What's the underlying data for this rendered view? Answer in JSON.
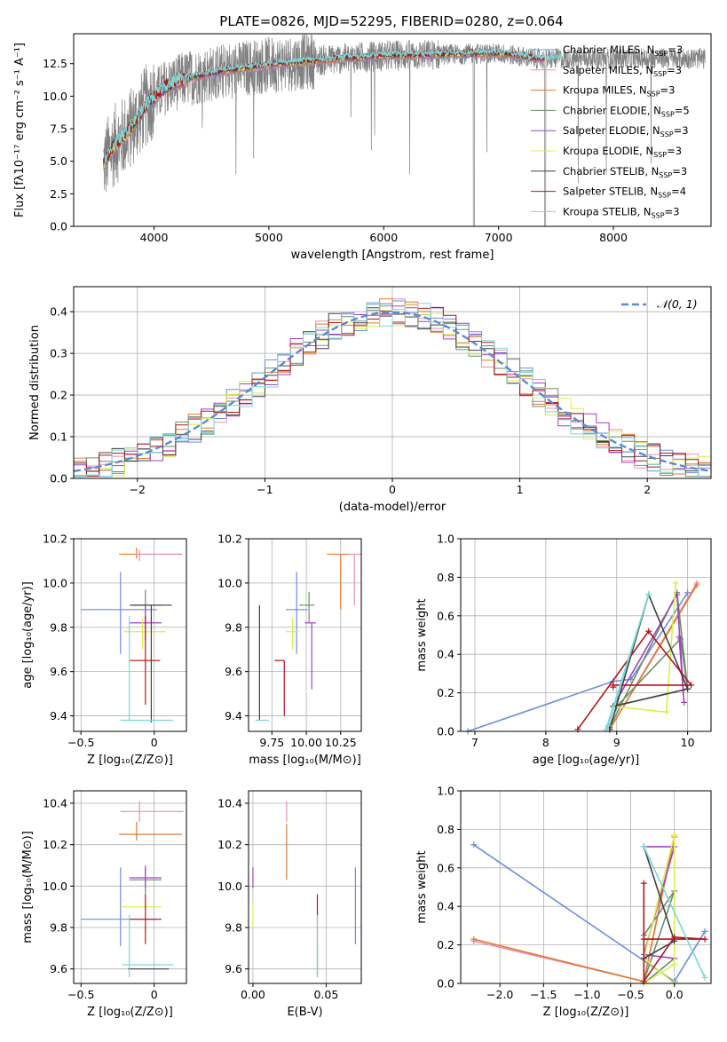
{
  "title": "PLATE=0826, MJD=52295, FIBERID=0280, z=0.064",
  "colors": {
    "gray": "#808080",
    "cb_miles": "#6a8fd9",
    "sp_miles": "#e88fb8",
    "kr_miles": "#e07b2c",
    "cb_elodie": "#6b8e6b",
    "sp_elodie": "#a241c2",
    "kr_elodie": "#d8ef4c",
    "cb_stelib": "#404040",
    "sp_stelib": "#b5141a",
    "kr_stelib": "#7ad7d8",
    "gauss": "#5b8ad6"
  },
  "chart_data": [
    {
      "id": "spectrum",
      "type": "line",
      "xlabel": "wavelength [Angstrom, rest frame]",
      "ylabel": "Flux [fλ10⁻¹⁷ erg cm⁻² s⁻¹ A⁻¹]",
      "xlim": [
        3300,
        8850
      ],
      "ylim": [
        0,
        14.8
      ],
      "xticks": [
        4000,
        5000,
        6000,
        7000,
        8000
      ],
      "yticks": [
        0.0,
        2.5,
        5.0,
        7.5,
        10.0,
        12.5
      ],
      "legend_position": "right",
      "legend": [
        {
          "label": "Chabrier MILES, N",
          "sub": "SSP",
          "n": "=3",
          "color": "cb_miles"
        },
        {
          "label": "Salpeter MILES, N",
          "sub": "SSP",
          "n": "=3",
          "color": "sp_miles"
        },
        {
          "label": "Kroupa MILES, N",
          "sub": "SSP",
          "n": "=3",
          "color": "kr_miles"
        },
        {
          "label": "Chabrier ELODIE, N",
          "sub": "SSP",
          "n": "=5",
          "color": "cb_elodie"
        },
        {
          "label": "Salpeter ELODIE, N",
          "sub": "SSP",
          "n": "=3",
          "color": "sp_elodie"
        },
        {
          "label": "Kroupa ELODIE, N",
          "sub": "SSP",
          "n": "=3",
          "color": "kr_elodie"
        },
        {
          "label": "Chabrier STELIB, N",
          "sub": "SSP",
          "n": "=3",
          "color": "cb_stelib"
        },
        {
          "label": "Salpeter STELIB, N",
          "sub": "SSP",
          "n": "=4",
          "color": "sp_stelib"
        },
        {
          "label": "Kroupa STELIB, N",
          "sub": "SSP",
          "n": "=3",
          "color": "kr_stelib"
        }
      ],
      "continuum": [
        [
          3560,
          4.8
        ],
        [
          3650,
          6.2
        ],
        [
          3750,
          7.0
        ],
        [
          3850,
          8.2
        ],
        [
          3950,
          9.5
        ],
        [
          4100,
          10.7
        ],
        [
          4300,
          11.4
        ],
        [
          4600,
          11.9
        ],
        [
          5000,
          12.4
        ],
        [
          5500,
          12.8
        ],
        [
          6000,
          13.1
        ],
        [
          6500,
          13.2
        ],
        [
          7000,
          13.3
        ],
        [
          7400,
          12.8
        ],
        [
          7500,
          12.9
        ]
      ]
    },
    {
      "id": "residuals",
      "type": "histogram",
      "xlabel": "(data-model)/error",
      "ylabel": "Normed distribution",
      "xlim": [
        -2.5,
        2.5
      ],
      "ylim": [
        0,
        0.46
      ],
      "xticks": [
        -2,
        -1,
        0,
        1,
        2
      ],
      "yticks": [
        0.0,
        0.1,
        0.2,
        0.3,
        0.4
      ],
      "legend": "𝒩(0, 1)",
      "legend_position": "upper right",
      "grid": true
    },
    {
      "id": "age_vs_Z",
      "type": "errorbar",
      "xlabel": "Z [log₁₀(Z/Z⊙)]",
      "ylabel": "age  [log₁₀(age/yr)]",
      "xlim": [
        -0.55,
        0.22
      ],
      "ylim": [
        9.33,
        10.2
      ],
      "xticks": [
        -0.5,
        0.0
      ],
      "yticks": [
        9.4,
        9.6,
        9.8,
        10.0,
        10.2
      ],
      "points": [
        {
          "color": "cb_miles",
          "x": -0.23,
          "xe": [
            0.27,
            0.25
          ],
          "y": 9.88,
          "ye": [
            0.2,
            0.17
          ]
        },
        {
          "color": "kr_miles",
          "x": -0.12,
          "xe": [
            0.12,
            0.31
          ],
          "y": 10.13,
          "ye": [
            0.02,
            0.03
          ]
        },
        {
          "color": "sp_miles",
          "x": -0.1,
          "xe": [
            0.03,
            0.27
          ],
          "y": 10.13,
          "ye": [
            0.03,
            0.02
          ]
        },
        {
          "color": "cb_elodie",
          "x": -0.06,
          "xe": [
            0.11,
            0.11
          ],
          "y": 9.9,
          "ye": [
            0.07,
            0.07
          ]
        },
        {
          "color": "sp_elodie",
          "x": -0.06,
          "xe": [
            0.11,
            0.11
          ],
          "y": 9.82,
          "ye": [
            0.08,
            0.08
          ]
        },
        {
          "color": "kr_elodie",
          "x": -0.08,
          "xe": [
            0.13,
            0.16
          ],
          "y": 9.78,
          "ye": [
            0.08,
            0.06
          ]
        },
        {
          "color": "sp_stelib",
          "x": -0.06,
          "xe": [
            0.11,
            0.1
          ],
          "y": 9.65,
          "ye": [
            0.2,
            0.2
          ]
        },
        {
          "color": "cb_stelib",
          "x": -0.02,
          "xe": [
            0.14,
            0.14
          ],
          "y": 9.9,
          "ye": [
            0.53,
            0.0
          ]
        },
        {
          "color": "kr_stelib",
          "x": -0.17,
          "xe": [
            0.06,
            0.3
          ],
          "y": 9.38,
          "ye": [
            0.0,
            0.47
          ]
        }
      ]
    },
    {
      "id": "age_vs_mass",
      "type": "errorbar",
      "xlabel": "mass [log₁₀(M/M⊙)]",
      "ylabel": "",
      "xlim": [
        9.58,
        10.4
      ],
      "ylim": [
        9.33,
        10.2
      ],
      "xticks": [
        9.75,
        10.0,
        10.25
      ],
      "xticklabels": [
        "9.75",
        "10.00",
        "10.25"
      ],
      "yticks": [
        9.4,
        9.6,
        9.8,
        10.0,
        10.2
      ],
      "points": [
        {
          "color": "cb_miles",
          "x": 9.93,
          "xe": [
            0.08,
            0.08
          ],
          "y": 9.88,
          "ye": [
            0.2,
            0.17
          ]
        },
        {
          "color": "kr_miles",
          "x": 10.25,
          "xe": [
            0.1,
            0.06
          ],
          "y": 10.13,
          "ye": [
            0.25,
            0.0
          ]
        },
        {
          "color": "sp_miles",
          "x": 10.35,
          "xe": [
            0.05,
            0.05
          ],
          "y": 10.13,
          "ye": [
            0.23,
            0.0
          ]
        },
        {
          "color": "cb_elodie",
          "x": 10.02,
          "xe": [
            0.07,
            0.04
          ],
          "y": 9.9,
          "ye": [
            0.08,
            0.06
          ]
        },
        {
          "color": "sp_elodie",
          "x": 10.04,
          "xe": [
            0.05,
            0.03
          ],
          "y": 9.82,
          "ye": [
            0.3,
            0.0
          ]
        },
        {
          "color": "kr_elodie",
          "x": 9.9,
          "xe": [
            0.05,
            0.05
          ],
          "y": 9.78,
          "ye": [
            0.08,
            0.06
          ]
        },
        {
          "color": "sp_stelib",
          "x": 9.84,
          "xe": [
            0.07,
            0.0
          ],
          "y": 9.65,
          "ye": [
            0.25,
            0.0
          ]
        },
        {
          "color": "cb_stelib",
          "x": 9.66,
          "xe": [
            0.0,
            0.0
          ],
          "y": 9.38,
          "ye": [
            0.0,
            0.52
          ]
        },
        {
          "color": "kr_stelib",
          "x": 9.68,
          "xe": [
            0.05,
            0.05
          ],
          "y": 9.38,
          "ye": [
            0.0,
            0.0
          ]
        }
      ]
    },
    {
      "id": "weight_vs_age",
      "type": "line",
      "xlabel": "age  [log₁₀(age/yr)]",
      "ylabel": "mass weight",
      "xlim": [
        6.8,
        10.33
      ],
      "ylim": [
        0,
        1.0
      ],
      "xticks": [
        7,
        8,
        9,
        10
      ],
      "yticks": [
        0.0,
        0.2,
        0.4,
        0.6,
        0.8,
        1.0
      ],
      "series": [
        {
          "color": "cb_miles",
          "x": [
            6.9,
            8.95,
            9.2,
            10.0
          ],
          "y": [
            0.0,
            0.26,
            0.27,
            0.72
          ]
        },
        {
          "color": "sp_miles",
          "x": [
            8.9,
            10.13
          ],
          "y": [
            0.01,
            0.77
          ]
        },
        {
          "color": "kr_miles",
          "x": [
            8.9,
            10.13
          ],
          "y": [
            0.01,
            0.76
          ]
        },
        {
          "color": "cb_elodie",
          "x": [
            8.9,
            9.0,
            9.9,
            10.0,
            9.85,
            8.9
          ],
          "y": [
            0.02,
            0.13,
            0.48,
            0.22,
            0.72,
            0.02
          ]
        },
        {
          "color": "sp_elodie",
          "x": [
            8.95,
            9.85,
            9.95,
            9.88
          ],
          "y": [
            0.13,
            0.71,
            0.15,
            0.49
          ]
        },
        {
          "color": "kr_elodie",
          "x": [
            8.95,
            9.7,
            9.83
          ],
          "y": [
            0.13,
            0.1,
            0.77
          ]
        },
        {
          "color": "cb_stelib",
          "x": [
            8.9,
            9.45,
            10.0,
            8.95
          ],
          "y": [
            0.01,
            0.71,
            0.22,
            0.13
          ]
        },
        {
          "color": "sp_stelib",
          "x": [
            8.45,
            9.45,
            10.05,
            8.95,
            8.95
          ],
          "y": [
            0.01,
            0.52,
            0.24,
            0.24,
            0.23
          ]
        },
        {
          "color": "kr_stelib",
          "x": [
            8.85,
            9.45,
            8.88
          ],
          "y": [
            0.01,
            0.71,
            0.03
          ]
        }
      ]
    },
    {
      "id": "mass_vs_Z",
      "type": "errorbar",
      "xlabel": "Z [log₁₀(Z/Z⊙)]",
      "ylabel": "mass [log₁₀(M/M⊙)]",
      "xlim": [
        -0.55,
        0.22
      ],
      "ylim": [
        9.53,
        10.46
      ],
      "xticks": [
        -0.5,
        0.0
      ],
      "yticks": [
        9.6,
        9.8,
        10.0,
        10.2,
        10.4
      ],
      "points": [
        {
          "color": "cb_miles",
          "x": -0.23,
          "xe": [
            0.27,
            0.25
          ],
          "y": 9.84,
          "ye": [
            0.13,
            0.25
          ]
        },
        {
          "color": "kr_miles",
          "x": -0.12,
          "xe": [
            0.12,
            0.31
          ],
          "y": 10.25,
          "ye": [
            0.03,
            0.06
          ]
        },
        {
          "color": "sp_miles",
          "x": -0.1,
          "xe": [
            0.13,
            0.3
          ],
          "y": 10.36,
          "ye": [
            0.05,
            0.05
          ]
        },
        {
          "color": "cb_elodie",
          "x": -0.06,
          "xe": [
            0.11,
            0.11
          ],
          "y": 10.03,
          "ye": [
            0.07,
            0.07
          ]
        },
        {
          "color": "sp_elodie",
          "x": -0.06,
          "xe": [
            0.11,
            0.11
          ],
          "y": 10.04,
          "ye": [
            0.05,
            0.05
          ]
        },
        {
          "color": "kr_elodie",
          "x": -0.08,
          "xe": [
            0.15,
            0.13
          ],
          "y": 9.9,
          "ye": [
            0.0,
            0.0
          ]
        },
        {
          "color": "sp_stelib",
          "x": -0.06,
          "xe": [
            0.11,
            0.11
          ],
          "y": 9.84,
          "ye": [
            0.12,
            0.12
          ]
        },
        {
          "color": "cb_stelib",
          "x": -0.04,
          "xe": [
            0.14,
            0.14
          ],
          "y": 9.6,
          "ye": [
            0.0,
            0.0
          ]
        },
        {
          "color": "kr_stelib",
          "x": -0.17,
          "xe": [
            0.05,
            0.3
          ],
          "y": 9.62,
          "ye": [
            0.06,
            0.24
          ]
        }
      ]
    },
    {
      "id": "mass_vs_ebv",
      "type": "errorbar",
      "xlabel": "E(B-V)",
      "ylabel": "",
      "xlim": [
        -0.003,
        0.074
      ],
      "ylim": [
        9.53,
        10.46
      ],
      "xticks": [
        0.0,
        0.05
      ],
      "xticklabels": [
        "0.00",
        "0.05"
      ],
      "yticks": [
        9.6,
        9.8,
        10.0,
        10.2,
        10.4
      ],
      "points": [
        {
          "color": "cb_miles",
          "x": 0.07,
          "y": 9.9,
          "ye": [
            0.18,
            0.19
          ]
        },
        {
          "color": "sp_miles",
          "x": 0.023,
          "y": 10.36,
          "ye": [
            0.05,
            0.05
          ]
        },
        {
          "color": "kr_miles",
          "x": 0.023,
          "y": 10.17,
          "ye": [
            0.14,
            0.13
          ]
        },
        {
          "color": "sp_elodie",
          "x": 0.0,
          "y": 10.04,
          "ye": [
            0.05,
            0.05
          ]
        },
        {
          "color": "kr_elodie",
          "x": 0.0,
          "y": 9.92,
          "ye": [
            0.12,
            0.0
          ]
        },
        {
          "color": "sp_stelib",
          "x": 0.044,
          "y": 9.84,
          "ye": [
            0.12,
            0.12
          ]
        },
        {
          "color": "cb_stelib",
          "x": 0.044,
          "y": 9.72,
          "ye": [
            0.16,
            0.0
          ]
        },
        {
          "color": "kr_stelib",
          "x": 0.044,
          "y": 9.72,
          "ye": [
            0.16,
            0.14
          ]
        }
      ]
    },
    {
      "id": "weight_vs_Z",
      "type": "line",
      "xlabel": "Z [log₁₀(Z/Z⊙)]",
      "ylabel": "mass weight",
      "xlim": [
        -2.45,
        0.42
      ],
      "ylim": [
        0,
        1.0
      ],
      "xticks": [
        -2.0,
        -1.5,
        -1.0,
        -0.5,
        0.0
      ],
      "xticklabels": [
        "−2.0",
        "−1.5",
        "−1.0",
        "−0.5",
        "0.0"
      ],
      "yticks": [
        0.0,
        0.2,
        0.4,
        0.6,
        0.8,
        1.0
      ],
      "series": [
        {
          "color": "cb_miles",
          "x": [
            -2.3,
            0.0,
            0.35,
            0.0
          ],
          "y": [
            0.72,
            0.01,
            0.27,
            0.01
          ]
        },
        {
          "color": "sp_miles",
          "x": [
            -2.3,
            -0.35,
            0.0
          ],
          "y": [
            0.22,
            0.01,
            0.77
          ]
        },
        {
          "color": "kr_miles",
          "x": [
            -2.3,
            -0.35,
            0.0
          ],
          "y": [
            0.23,
            0.01,
            0.76
          ]
        },
        {
          "color": "cb_elodie",
          "x": [
            -0.35,
            0.0,
            -0.35,
            -0.35,
            0.0
          ],
          "y": [
            0.01,
            0.48,
            0.25,
            0.0,
            0.13
          ]
        },
        {
          "color": "sp_elodie",
          "x": [
            -0.35,
            0.0,
            -0.35,
            0.0
          ],
          "y": [
            0.71,
            0.71,
            0.15,
            0.13
          ]
        },
        {
          "color": "kr_elodie",
          "x": [
            -0.35,
            0.0,
            0.0,
            -0.35,
            0.0
          ],
          "y": [
            0.0,
            0.1,
            0.77,
            0.13,
            0.0
          ]
        },
        {
          "color": "cb_stelib",
          "x": [
            -0.35,
            0.0,
            -0.35
          ],
          "y": [
            0.71,
            0.22,
            0.13
          ]
        },
        {
          "color": "sp_stelib",
          "x": [
            -0.35,
            -0.35,
            0.0,
            0.35,
            -0.35
          ],
          "y": [
            0.52,
            0.01,
            0.24,
            0.23,
            0.23
          ]
        },
        {
          "color": "kr_stelib",
          "x": [
            -0.35,
            0.35,
            -0.35
          ],
          "y": [
            0.71,
            0.03,
            0.71
          ]
        }
      ]
    }
  ]
}
